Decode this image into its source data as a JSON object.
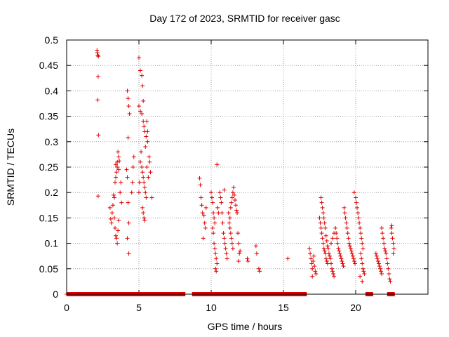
{
  "chart_data": {
    "type": "scatter",
    "title": "Day 172 of 2023, SRMTID for receiver gasc",
    "xlabel": "GPS time / hours",
    "ylabel": "SRMTID / TECUs",
    "xlim": [
      0,
      25
    ],
    "ylim": [
      0,
      0.5
    ],
    "xticks": [
      0,
      5,
      10,
      15,
      20
    ],
    "yticks": [
      0,
      0.05,
      0.1,
      0.15,
      0.2,
      0.25,
      0.3,
      0.35,
      0.4,
      0.45,
      0.5
    ],
    "xtick_labels": [
      "0",
      "5",
      "10",
      "15",
      "20"
    ],
    "ytick_labels": [
      "0",
      "0.05",
      "0.1",
      "0.15",
      "0.2",
      "0.25",
      "0.3",
      "0.35",
      "0.4",
      "0.45",
      "0.5"
    ],
    "grid": true,
    "marker": "+",
    "color": "#e00000",
    "series": [
      {
        "name": "SRMTID",
        "points": [
          [
            2.1,
            0.48
          ],
          [
            2.15,
            0.47
          ],
          [
            2.2,
            0.468
          ],
          [
            2.12,
            0.475
          ],
          [
            2.18,
            0.428
          ],
          [
            2.15,
            0.382
          ],
          [
            2.2,
            0.313
          ],
          [
            2.18,
            0.193
          ],
          [
            3.0,
            0.17
          ],
          [
            3.05,
            0.148
          ],
          [
            3.1,
            0.14
          ],
          [
            3.15,
            0.16
          ],
          [
            3.2,
            0.175
          ],
          [
            3.25,
            0.195
          ],
          [
            3.3,
            0.19
          ],
          [
            3.35,
            0.22
          ],
          [
            3.4,
            0.23
          ],
          [
            3.45,
            0.24
          ],
          [
            3.5,
            0.26
          ],
          [
            3.55,
            0.28
          ],
          [
            3.6,
            0.27
          ],
          [
            3.4,
            0.255
          ],
          [
            3.5,
            0.25
          ],
          [
            3.6,
            0.245
          ],
          [
            3.65,
            0.262
          ],
          [
            3.3,
            0.15
          ],
          [
            3.35,
            0.13
          ],
          [
            3.4,
            0.115
          ],
          [
            3.45,
            0.11
          ],
          [
            3.5,
            0.1
          ],
          [
            3.55,
            0.125
          ],
          [
            3.6,
            0.145
          ],
          [
            3.7,
            0.2
          ],
          [
            3.75,
            0.22
          ],
          [
            3.8,
            0.18
          ],
          [
            4.2,
            0.4
          ],
          [
            4.25,
            0.385
          ],
          [
            4.3,
            0.37
          ],
          [
            4.35,
            0.355
          ],
          [
            4.25,
            0.308
          ],
          [
            4.15,
            0.245
          ],
          [
            4.2,
            0.23
          ],
          [
            4.25,
            0.18
          ],
          [
            4.3,
            0.14
          ],
          [
            4.2,
            0.11
          ],
          [
            4.3,
            0.08
          ],
          [
            4.5,
            0.2
          ],
          [
            4.55,
            0.22
          ],
          [
            4.6,
            0.25
          ],
          [
            4.65,
            0.27
          ],
          [
            5.0,
            0.465
          ],
          [
            5.1,
            0.44
          ],
          [
            5.2,
            0.43
          ],
          [
            5.25,
            0.41
          ],
          [
            5.3,
            0.38
          ],
          [
            5.0,
            0.37
          ],
          [
            5.1,
            0.36
          ],
          [
            5.2,
            0.355
          ],
          [
            5.3,
            0.34
          ],
          [
            5.35,
            0.33
          ],
          [
            5.4,
            0.32
          ],
          [
            5.5,
            0.31
          ],
          [
            5.6,
            0.3
          ],
          [
            5.1,
            0.26
          ],
          [
            5.2,
            0.25
          ],
          [
            5.25,
            0.24
          ],
          [
            5.3,
            0.23
          ],
          [
            5.35,
            0.22
          ],
          [
            5.4,
            0.21
          ],
          [
            5.45,
            0.2
          ],
          [
            5.5,
            0.19
          ],
          [
            5.25,
            0.17
          ],
          [
            5.3,
            0.16
          ],
          [
            5.35,
            0.15
          ],
          [
            5.4,
            0.145
          ],
          [
            5.55,
            0.34
          ],
          [
            5.6,
            0.32
          ],
          [
            5.7,
            0.27
          ],
          [
            5.75,
            0.26
          ],
          [
            5.8,
            0.24
          ],
          [
            5.9,
            0.19
          ],
          [
            5.0,
            0.2
          ],
          [
            5.05,
            0.22
          ],
          [
            5.15,
            0.28
          ],
          [
            5.45,
            0.29
          ],
          [
            5.55,
            0.25
          ],
          [
            5.65,
            0.23
          ],
          [
            9.2,
            0.228
          ],
          [
            9.25,
            0.215
          ],
          [
            9.3,
            0.19
          ],
          [
            9.35,
            0.175
          ],
          [
            9.4,
            0.16
          ],
          [
            9.5,
            0.155
          ],
          [
            9.55,
            0.14
          ],
          [
            9.6,
            0.13
          ],
          [
            9.45,
            0.11
          ],
          [
            9.65,
            0.17
          ],
          [
            10.0,
            0.2
          ],
          [
            10.05,
            0.19
          ],
          [
            10.1,
            0.18
          ],
          [
            10.15,
            0.16
          ],
          [
            10.2,
            0.15
          ],
          [
            10.25,
            0.14
          ],
          [
            10.1,
            0.13
          ],
          [
            10.15,
            0.12
          ],
          [
            10.2,
            0.1
          ],
          [
            10.25,
            0.09
          ],
          [
            10.3,
            0.08
          ],
          [
            10.35,
            0.07
          ],
          [
            10.4,
            0.06
          ],
          [
            10.3,
            0.05
          ],
          [
            10.35,
            0.045
          ],
          [
            10.4,
            0.255
          ],
          [
            10.45,
            0.17
          ],
          [
            10.5,
            0.16
          ],
          [
            10.6,
            0.2
          ],
          [
            10.65,
            0.19
          ],
          [
            10.7,
            0.18
          ],
          [
            10.75,
            0.16
          ],
          [
            10.8,
            0.14
          ],
          [
            10.85,
            0.12
          ],
          [
            10.9,
            0.11
          ],
          [
            10.95,
            0.1
          ],
          [
            11.0,
            0.09
          ],
          [
            11.05,
            0.08
          ],
          [
            11.1,
            0.07
          ],
          [
            10.9,
            0.205
          ],
          [
            11.2,
            0.16
          ],
          [
            11.25,
            0.14
          ],
          [
            11.3,
            0.13
          ],
          [
            11.35,
            0.12
          ],
          [
            11.4,
            0.11
          ],
          [
            11.45,
            0.1
          ],
          [
            11.5,
            0.09
          ],
          [
            11.3,
            0.15
          ],
          [
            11.35,
            0.17
          ],
          [
            11.4,
            0.18
          ],
          [
            11.45,
            0.19
          ],
          [
            11.5,
            0.2
          ],
          [
            11.55,
            0.21
          ],
          [
            11.6,
            0.195
          ],
          [
            11.65,
            0.185
          ],
          [
            11.7,
            0.175
          ],
          [
            11.75,
            0.165
          ],
          [
            11.8,
            0.16
          ],
          [
            11.85,
            0.12
          ],
          [
            11.9,
            0.1
          ],
          [
            11.95,
            0.08
          ],
          [
            12.0,
            0.085
          ],
          [
            11.9,
            0.065
          ],
          [
            12.5,
            0.07
          ],
          [
            12.55,
            0.065
          ],
          [
            13.1,
            0.095
          ],
          [
            13.15,
            0.08
          ],
          [
            13.3,
            0.05
          ],
          [
            13.35,
            0.045
          ],
          [
            15.3,
            0.07
          ],
          [
            16.8,
            0.09
          ],
          [
            16.85,
            0.08
          ],
          [
            16.9,
            0.07
          ],
          [
            16.95,
            0.06
          ],
          [
            17.0,
            0.05
          ],
          [
            17.05,
            0.065
          ],
          [
            17.1,
            0.075
          ],
          [
            17.15,
            0.055
          ],
          [
            17.2,
            0.045
          ],
          [
            17.25,
            0.04
          ],
          [
            17.0,
            0.035
          ],
          [
            17.5,
            0.15
          ],
          [
            17.55,
            0.14
          ],
          [
            17.6,
            0.13
          ],
          [
            17.65,
            0.12
          ],
          [
            17.7,
            0.11
          ],
          [
            17.75,
            0.1
          ],
          [
            17.8,
            0.09
          ],
          [
            17.85,
            0.085
          ],
          [
            17.9,
            0.08
          ],
          [
            17.95,
            0.07
          ],
          [
            18.0,
            0.065
          ],
          [
            18.05,
            0.06
          ],
          [
            17.6,
            0.19
          ],
          [
            17.65,
            0.18
          ],
          [
            17.7,
            0.17
          ],
          [
            17.75,
            0.16
          ],
          [
            17.8,
            0.15
          ],
          [
            17.85,
            0.14
          ],
          [
            17.9,
            0.13
          ],
          [
            17.95,
            0.115
          ],
          [
            18.0,
            0.105
          ],
          [
            18.05,
            0.095
          ],
          [
            18.1,
            0.09
          ],
          [
            18.15,
            0.08
          ],
          [
            18.2,
            0.075
          ],
          [
            18.25,
            0.07
          ],
          [
            18.3,
            0.06
          ],
          [
            18.35,
            0.05
          ],
          [
            18.4,
            0.045
          ],
          [
            18.45,
            0.04
          ],
          [
            18.5,
            0.035
          ],
          [
            18.3,
            0.1
          ],
          [
            18.4,
            0.11
          ],
          [
            18.5,
            0.12
          ],
          [
            18.6,
            0.13
          ],
          [
            18.65,
            0.12
          ],
          [
            18.7,
            0.11
          ],
          [
            18.75,
            0.1
          ],
          [
            18.8,
            0.09
          ],
          [
            18.85,
            0.085
          ],
          [
            18.9,
            0.08
          ],
          [
            18.95,
            0.075
          ],
          [
            19.0,
            0.07
          ],
          [
            19.05,
            0.065
          ],
          [
            19.1,
            0.06
          ],
          [
            19.15,
            0.055
          ],
          [
            19.2,
            0.17
          ],
          [
            19.25,
            0.16
          ],
          [
            19.3,
            0.15
          ],
          [
            19.35,
            0.14
          ],
          [
            19.4,
            0.13
          ],
          [
            19.45,
            0.12
          ],
          [
            19.5,
            0.11
          ],
          [
            19.55,
            0.1
          ],
          [
            19.6,
            0.095
          ],
          [
            19.65,
            0.09
          ],
          [
            19.7,
            0.085
          ],
          [
            19.75,
            0.08
          ],
          [
            19.8,
            0.075
          ],
          [
            19.85,
            0.07
          ],
          [
            19.9,
            0.065
          ],
          [
            19.95,
            0.06
          ],
          [
            20.0,
            0.19
          ],
          [
            20.05,
            0.18
          ],
          [
            20.1,
            0.17
          ],
          [
            20.15,
            0.16
          ],
          [
            20.2,
            0.15
          ],
          [
            20.25,
            0.14
          ],
          [
            20.3,
            0.13
          ],
          [
            20.35,
            0.12
          ],
          [
            20.4,
            0.11
          ],
          [
            20.45,
            0.1
          ],
          [
            20.5,
            0.09
          ],
          [
            20.35,
            0.08
          ],
          [
            20.4,
            0.07
          ],
          [
            20.45,
            0.06
          ],
          [
            20.5,
            0.05
          ],
          [
            20.55,
            0.045
          ],
          [
            20.6,
            0.04
          ],
          [
            20.3,
            0.035
          ],
          [
            20.45,
            0.025
          ],
          [
            19.9,
            0.2
          ],
          [
            21.4,
            0.08
          ],
          [
            21.45,
            0.075
          ],
          [
            21.5,
            0.07
          ],
          [
            21.55,
            0.065
          ],
          [
            21.6,
            0.06
          ],
          [
            21.65,
            0.055
          ],
          [
            21.7,
            0.05
          ],
          [
            21.75,
            0.045
          ],
          [
            21.8,
            0.04
          ],
          [
            21.8,
            0.13
          ],
          [
            21.85,
            0.12
          ],
          [
            21.9,
            0.11
          ],
          [
            21.95,
            0.1
          ],
          [
            22.0,
            0.09
          ],
          [
            22.05,
            0.085
          ],
          [
            22.1,
            0.08
          ],
          [
            22.15,
            0.07
          ],
          [
            22.2,
            0.06
          ],
          [
            22.25,
            0.05
          ],
          [
            22.3,
            0.04
          ],
          [
            22.35,
            0.03
          ],
          [
            22.4,
            0.025
          ],
          [
            22.45,
            0.13
          ],
          [
            22.5,
            0.12
          ],
          [
            22.55,
            0.11
          ],
          [
            22.6,
            0.1
          ],
          [
            22.65,
            0.09
          ],
          [
            22.5,
            0.135
          ],
          [
            22.6,
            0.08
          ]
        ],
        "zero_ranges": [
          [
            0.0,
            8.2
          ],
          [
            8.7,
            16.6
          ],
          [
            20.7,
            21.2
          ],
          [
            22.2,
            22.7
          ]
        ]
      }
    ]
  }
}
